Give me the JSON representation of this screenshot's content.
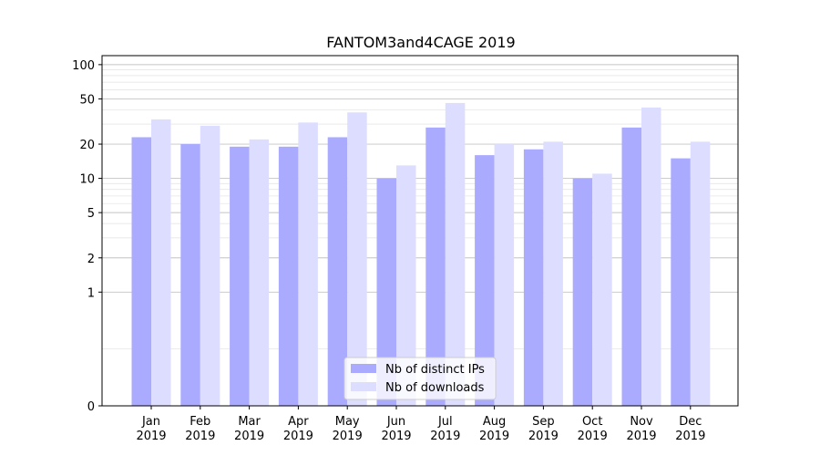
{
  "chart_data": {
    "type": "bar",
    "title": "FANTOM3and4CAGE 2019",
    "xlabel": "",
    "ylabel": "",
    "y_scale": "symlog",
    "ylim": [
      0,
      120
    ],
    "y_ticks": [
      0,
      1,
      2,
      5,
      10,
      20,
      50,
      100
    ],
    "grid": "y",
    "legend_position": "bottom-center",
    "categories": [
      "Jan\n2019",
      "Feb\n2019",
      "Mar\n2019",
      "Apr\n2019",
      "May\n2019",
      "Jun\n2019",
      "Jul\n2019",
      "Aug\n2019",
      "Sep\n2019",
      "Oct\n2019",
      "Nov\n2019",
      "Dec\n2019"
    ],
    "series": [
      {
        "name": "Nb of distinct IPs",
        "color": "#aaaaff",
        "values": [
          23,
          20,
          19,
          19,
          23,
          10,
          28,
          16,
          18,
          10,
          28,
          15
        ]
      },
      {
        "name": "Nb of downloads",
        "color": "#ddddff",
        "values": [
          33,
          29,
          22,
          31,
          38,
          13,
          46,
          20,
          21,
          11,
          42,
          21
        ]
      }
    ]
  }
}
